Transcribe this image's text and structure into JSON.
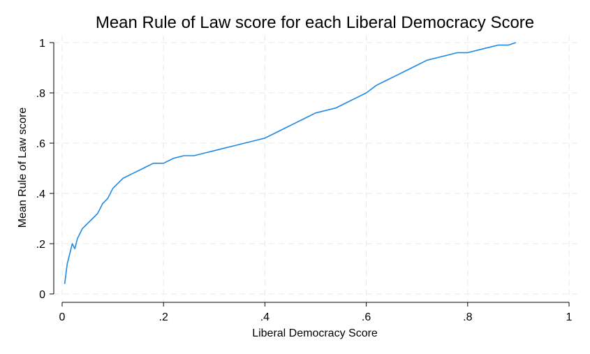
{
  "chart_data": {
    "type": "line",
    "title": "Mean Rule of Law score for each Liberal Democracy Score",
    "xlabel": "Liberal Democracy Score",
    "ylabel": "Mean Rule of Law score",
    "xlim": [
      0,
      1
    ],
    "ylim": [
      0,
      1
    ],
    "x_ticks": [
      "0",
      ".2",
      ".4",
      ".6",
      ".8",
      "1"
    ],
    "y_ticks": [
      "0",
      ".2",
      ".4",
      ".6",
      ".8",
      "1"
    ],
    "grid": true,
    "legend": "none",
    "series": [
      {
        "color": "#1e88e5",
        "x": [
          0.005,
          0.01,
          0.015,
          0.02,
          0.025,
          0.03,
          0.04,
          0.05,
          0.06,
          0.07,
          0.08,
          0.09,
          0.1,
          0.12,
          0.14,
          0.16,
          0.18,
          0.2,
          0.22,
          0.24,
          0.26,
          0.28,
          0.3,
          0.32,
          0.34,
          0.36,
          0.38,
          0.4,
          0.42,
          0.44,
          0.46,
          0.48,
          0.5,
          0.52,
          0.54,
          0.56,
          0.58,
          0.6,
          0.62,
          0.64,
          0.66,
          0.68,
          0.7,
          0.72,
          0.74,
          0.76,
          0.78,
          0.8,
          0.82,
          0.84,
          0.86,
          0.88,
          0.895
        ],
        "y": [
          0.04,
          0.12,
          0.16,
          0.2,
          0.18,
          0.22,
          0.26,
          0.28,
          0.3,
          0.32,
          0.36,
          0.38,
          0.42,
          0.46,
          0.48,
          0.5,
          0.52,
          0.52,
          0.54,
          0.55,
          0.55,
          0.56,
          0.57,
          0.58,
          0.59,
          0.6,
          0.61,
          0.62,
          0.64,
          0.66,
          0.68,
          0.7,
          0.72,
          0.73,
          0.74,
          0.76,
          0.78,
          0.8,
          0.83,
          0.85,
          0.87,
          0.89,
          0.91,
          0.93,
          0.94,
          0.95,
          0.96,
          0.96,
          0.97,
          0.98,
          0.99,
          0.99,
          1.0
        ]
      }
    ]
  }
}
